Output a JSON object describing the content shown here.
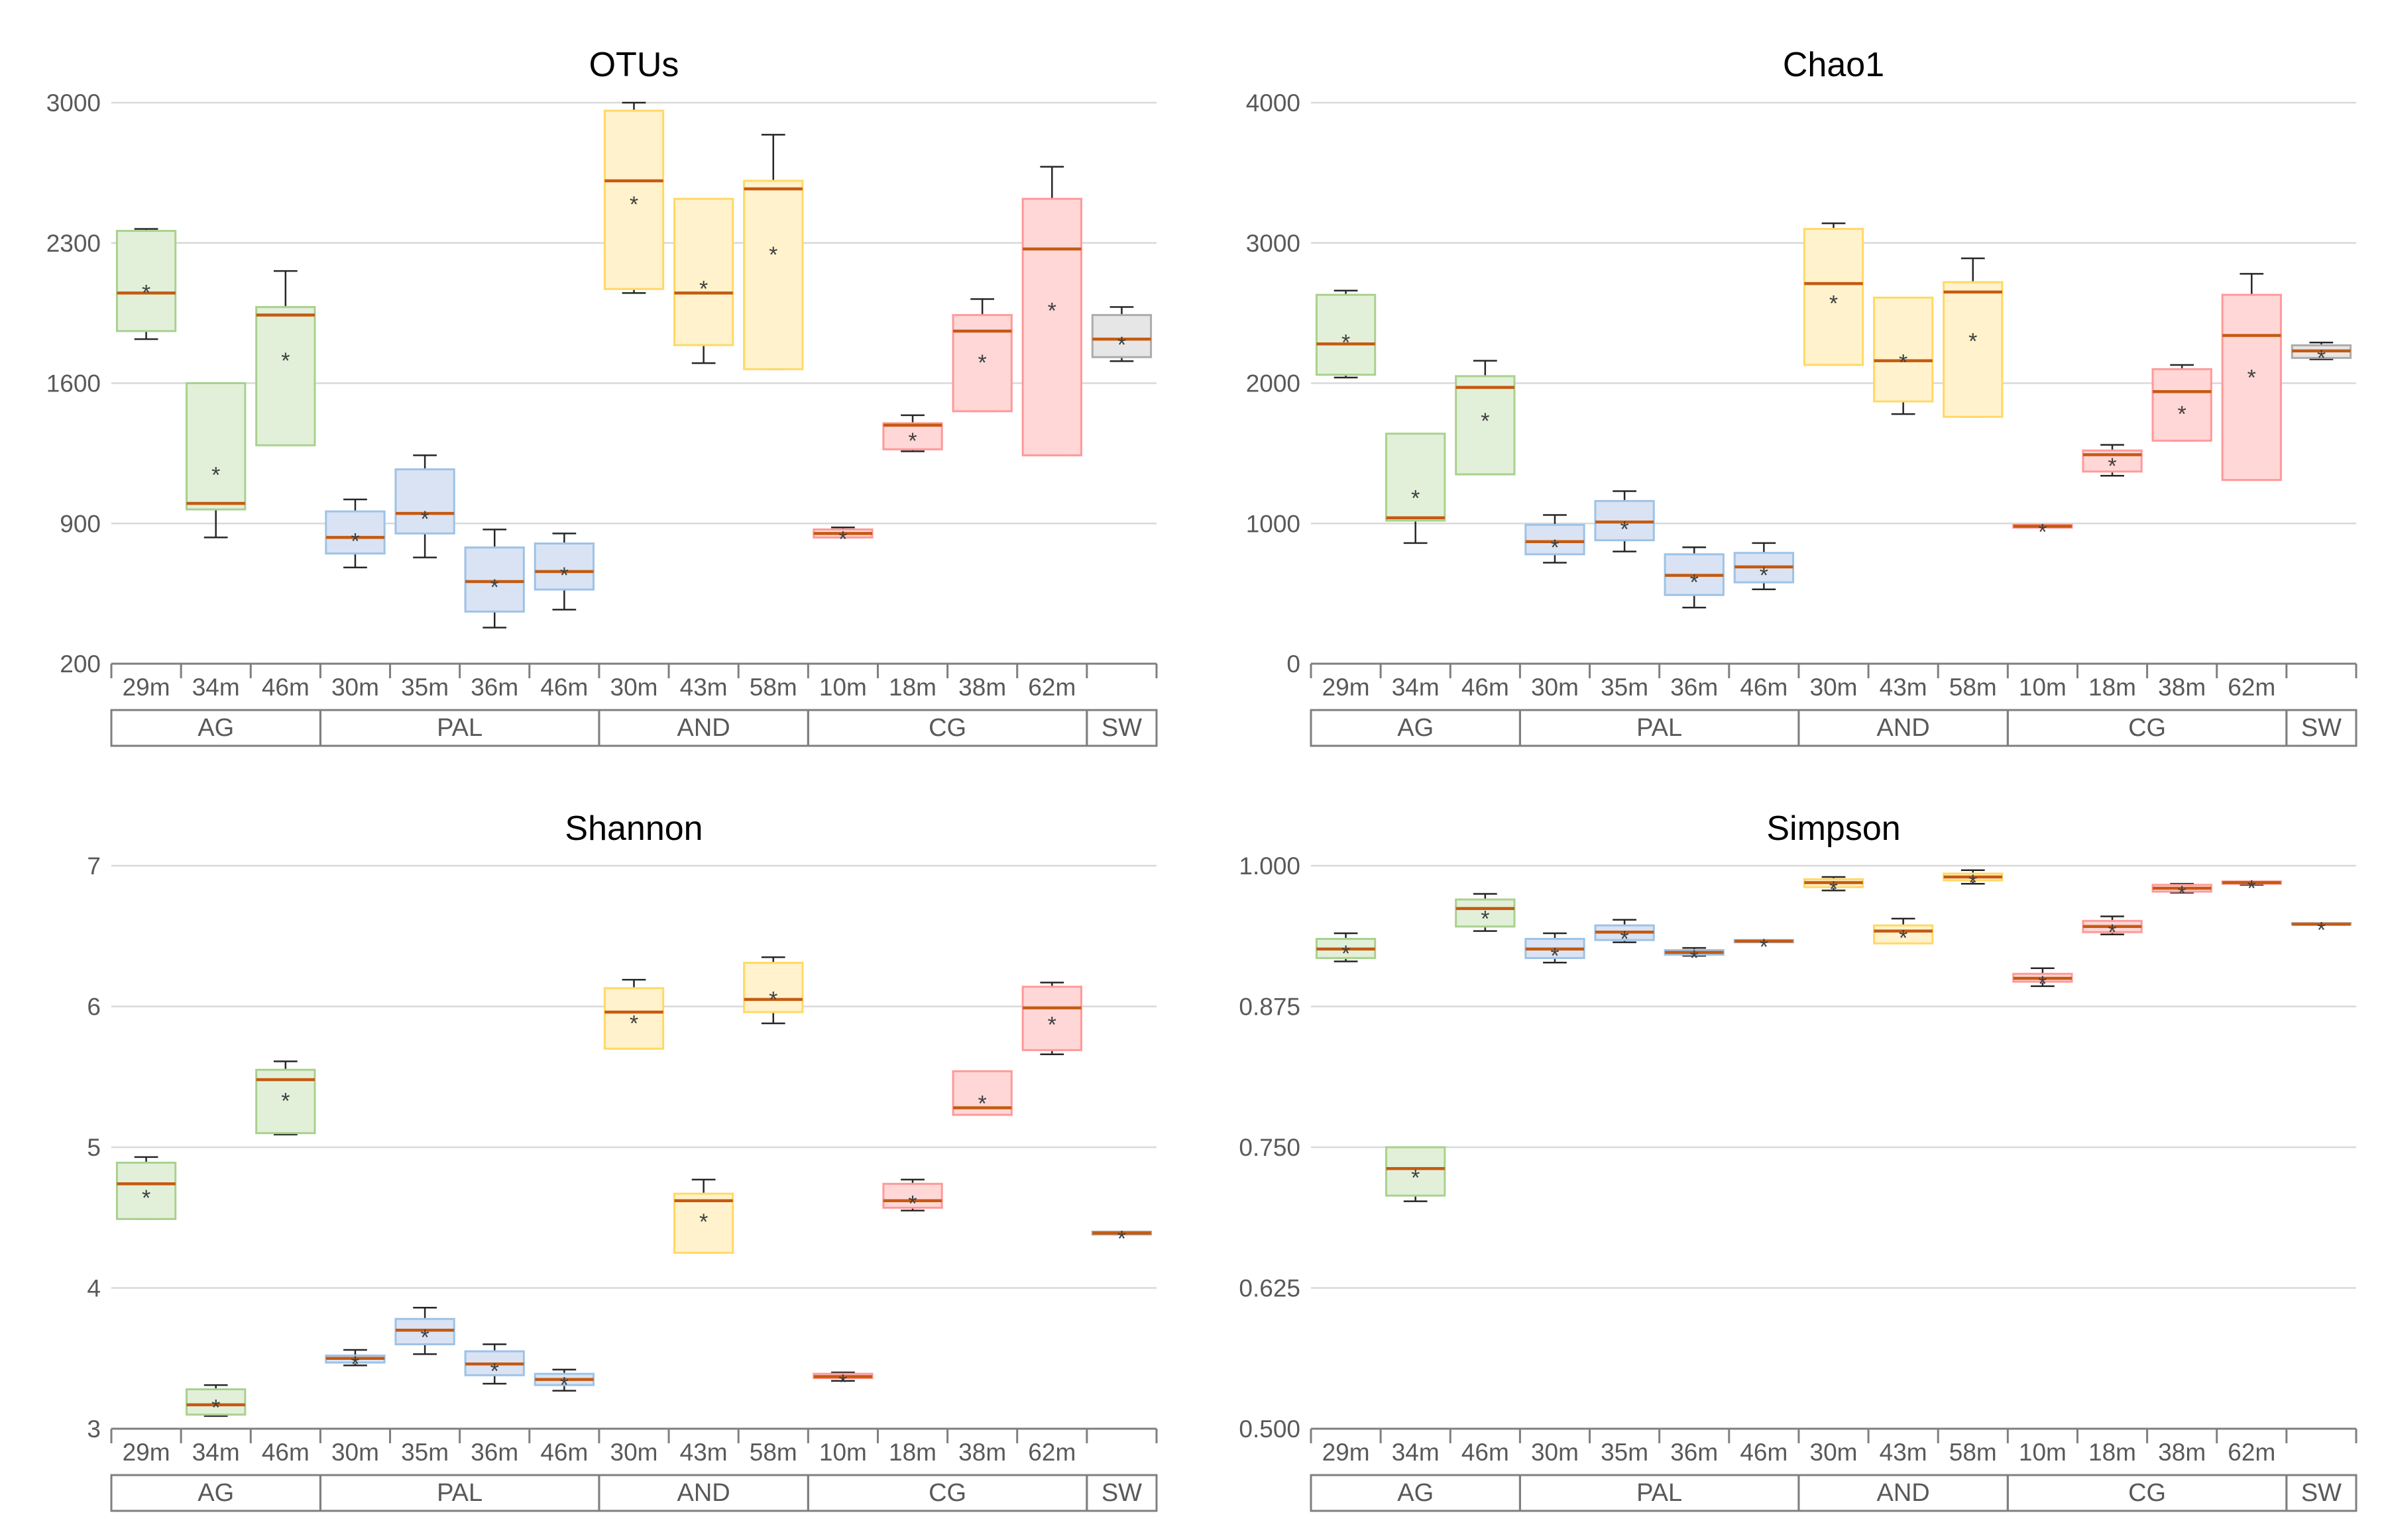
{
  "styles": {
    "grid_color": "#d9d9d9",
    "axis_color": "#7f7f7f",
    "text_color": "#595959",
    "title_color": "#000000",
    "median_color": "#c55a11",
    "whisker_color": "#262626",
    "mean_marker": "*",
    "group_colors": {
      "AG": {
        "fill": "#e2f0d9",
        "stroke": "#a9d18e"
      },
      "PAL": {
        "fill": "#dae3f3",
        "stroke": "#9dc3e6"
      },
      "AND": {
        "fill": "#fff2cc",
        "stroke": "#ffd966"
      },
      "CG": {
        "fill": "#ffd7d7",
        "stroke": "#ff9999"
      },
      "SW": {
        "fill": "#e7e6e6",
        "stroke": "#aeaaaa"
      }
    }
  },
  "categories": [
    "29m",
    "34m",
    "46m",
    "30m",
    "35m",
    "36m",
    "46m",
    "30m",
    "43m",
    "58m",
    "10m",
    "18m",
    "38m",
    "62m",
    ""
  ],
  "groups": [
    {
      "label": "AG",
      "start": 0,
      "end": 2
    },
    {
      "label": "PAL",
      "start": 3,
      "end": 6
    },
    {
      "label": "AND",
      "start": 7,
      "end": 9
    },
    {
      "label": "CG",
      "start": 10,
      "end": 13
    },
    {
      "label": "SW",
      "start": 14,
      "end": 14
    }
  ],
  "chart_data": [
    {
      "type": "boxplot",
      "title": "OTUs",
      "ylim": [
        200,
        3000
      ],
      "yticks": [
        "3000",
        "2300",
        "1600",
        "900",
        "200"
      ],
      "ytick_values": [
        3000,
        2300,
        1600,
        900,
        200
      ],
      "boxes": [
        {
          "g": "AG",
          "min": 1820,
          "q1": 1860,
          "median": 2050,
          "q3": 2360,
          "max": 2370,
          "mean": 2080
        },
        {
          "g": "AG",
          "min": 830,
          "q1": 970,
          "median": 1000,
          "q3": 1600,
          "max": 1600,
          "mean": 1170
        },
        {
          "g": "AG",
          "min": 1290,
          "q1": 1290,
          "median": 1940,
          "q3": 1980,
          "max": 2160,
          "mean": 1740
        },
        {
          "g": "PAL",
          "min": 680,
          "q1": 750,
          "median": 830,
          "q3": 960,
          "max": 1020,
          "mean": 840
        },
        {
          "g": "PAL",
          "min": 730,
          "q1": 850,
          "median": 950,
          "q3": 1170,
          "max": 1240,
          "mean": 950
        },
        {
          "g": "PAL",
          "min": 380,
          "q1": 460,
          "median": 610,
          "q3": 780,
          "max": 870,
          "mean": 610
        },
        {
          "g": "PAL",
          "min": 470,
          "q1": 570,
          "median": 660,
          "q3": 800,
          "max": 850,
          "mean": 670
        },
        {
          "g": "AND",
          "min": 2050,
          "q1": 2070,
          "median": 2610,
          "q3": 2960,
          "max": 3000,
          "mean": 2520
        },
        {
          "g": "AND",
          "min": 1700,
          "q1": 1790,
          "median": 2050,
          "q3": 2520,
          "max": 2520,
          "mean": 2100
        },
        {
          "g": "AND",
          "min": 1670,
          "q1": 1670,
          "median": 2570,
          "q3": 2610,
          "max": 2840,
          "mean": 2270
        },
        {
          "g": "CG",
          "min": 830,
          "q1": 830,
          "median": 850,
          "q3": 870,
          "max": 880,
          "mean": 850
        },
        {
          "g": "CG",
          "min": 1260,
          "q1": 1270,
          "median": 1390,
          "q3": 1400,
          "max": 1440,
          "mean": 1340
        },
        {
          "g": "CG",
          "min": 1460,
          "q1": 1460,
          "median": 1860,
          "q3": 1940,
          "max": 2020,
          "mean": 1730
        },
        {
          "g": "CG",
          "min": 1240,
          "q1": 1240,
          "median": 2270,
          "q3": 2520,
          "max": 2680,
          "mean": 1990
        },
        {
          "g": "SW",
          "min": 1710,
          "q1": 1730,
          "median": 1820,
          "q3": 1940,
          "max": 1980,
          "mean": 1820
        }
      ]
    },
    {
      "type": "boxplot",
      "title": "Chao1",
      "ylim": [
        0,
        4000
      ],
      "yticks": [
        "4000",
        "3000",
        "2000",
        "1000",
        "0"
      ],
      "ytick_values": [
        4000,
        3000,
        2000,
        1000,
        0
      ],
      "boxes": [
        {
          "g": "AG",
          "min": 2040,
          "q1": 2060,
          "median": 2280,
          "q3": 2630,
          "max": 2660,
          "mean": 2330
        },
        {
          "g": "AG",
          "min": 860,
          "q1": 1020,
          "median": 1040,
          "q3": 1640,
          "max": 1640,
          "mean": 1220
        },
        {
          "g": "AG",
          "min": 1350,
          "q1": 1350,
          "median": 1970,
          "q3": 2050,
          "max": 2160,
          "mean": 1770
        },
        {
          "g": "PAL",
          "min": 720,
          "q1": 780,
          "median": 870,
          "q3": 990,
          "max": 1060,
          "mean": 870
        },
        {
          "g": "PAL",
          "min": 800,
          "q1": 880,
          "median": 1010,
          "q3": 1160,
          "max": 1230,
          "mean": 1000
        },
        {
          "g": "PAL",
          "min": 400,
          "q1": 490,
          "median": 630,
          "q3": 780,
          "max": 830,
          "mean": 620
        },
        {
          "g": "PAL",
          "min": 530,
          "q1": 580,
          "median": 690,
          "q3": 790,
          "max": 860,
          "mean": 670
        },
        {
          "g": "AND",
          "min": 2130,
          "q1": 2130,
          "median": 2710,
          "q3": 3100,
          "max": 3140,
          "mean": 2610
        },
        {
          "g": "AND",
          "min": 1780,
          "q1": 1870,
          "median": 2160,
          "q3": 2610,
          "max": 2610,
          "mean": 2190
        },
        {
          "g": "AND",
          "min": 1760,
          "q1": 1760,
          "median": 2650,
          "q3": 2720,
          "max": 2890,
          "mean": 2340
        },
        {
          "g": "CG",
          "min": 970,
          "q1": 970,
          "median": 980,
          "q3": 990,
          "max": 990,
          "mean": 980
        },
        {
          "g": "CG",
          "min": 1340,
          "q1": 1370,
          "median": 1490,
          "q3": 1520,
          "max": 1560,
          "mean": 1450
        },
        {
          "g": "CG",
          "min": 1590,
          "q1": 1590,
          "median": 1940,
          "q3": 2100,
          "max": 2130,
          "mean": 1820
        },
        {
          "g": "CG",
          "min": 1310,
          "q1": 1310,
          "median": 2340,
          "q3": 2630,
          "max": 2780,
          "mean": 2080
        },
        {
          "g": "SW",
          "min": 2170,
          "q1": 2180,
          "median": 2230,
          "q3": 2270,
          "max": 2290,
          "mean": 2220
        }
      ]
    },
    {
      "type": "boxplot",
      "title": "Shannon",
      "ylim": [
        3,
        7
      ],
      "yticks": [
        "7",
        "6",
        "5",
        "4",
        "3"
      ],
      "ytick_values": [
        7,
        6,
        5,
        4,
        3
      ],
      "boxes": [
        {
          "g": "AG",
          "min": 4.49,
          "q1": 4.49,
          "median": 4.74,
          "q3": 4.89,
          "max": 4.93,
          "mean": 4.68
        },
        {
          "g": "AG",
          "min": 3.09,
          "q1": 3.1,
          "median": 3.17,
          "q3": 3.28,
          "max": 3.31,
          "mean": 3.19
        },
        {
          "g": "AG",
          "min": 5.09,
          "q1": 5.1,
          "median": 5.48,
          "q3": 5.55,
          "max": 5.61,
          "mean": 5.37
        },
        {
          "g": "PAL",
          "min": 3.45,
          "q1": 3.47,
          "median": 3.5,
          "q3": 3.52,
          "max": 3.56,
          "mean": 3.5
        },
        {
          "g": "PAL",
          "min": 3.53,
          "q1": 3.6,
          "median": 3.7,
          "q3": 3.78,
          "max": 3.86,
          "mean": 3.69
        },
        {
          "g": "PAL",
          "min": 3.32,
          "q1": 3.38,
          "median": 3.46,
          "q3": 3.55,
          "max": 3.6,
          "mean": 3.45
        },
        {
          "g": "PAL",
          "min": 3.27,
          "q1": 3.31,
          "median": 3.35,
          "q3": 3.39,
          "max": 3.42,
          "mean": 3.35
        },
        {
          "g": "AND",
          "min": 5.7,
          "q1": 5.7,
          "median": 5.96,
          "q3": 6.13,
          "max": 6.19,
          "mean": 5.92
        },
        {
          "g": "AND",
          "min": 4.25,
          "q1": 4.25,
          "median": 4.62,
          "q3": 4.67,
          "max": 4.77,
          "mean": 4.51
        },
        {
          "g": "AND",
          "min": 5.88,
          "q1": 5.96,
          "median": 6.05,
          "q3": 6.31,
          "max": 6.35,
          "mean": 6.09
        },
        {
          "g": "CG",
          "min": 3.34,
          "q1": 3.36,
          "median": 3.37,
          "q3": 3.39,
          "max": 3.4,
          "mean": 3.37
        },
        {
          "g": "CG",
          "min": 4.55,
          "q1": 4.57,
          "median": 4.62,
          "q3": 4.74,
          "max": 4.77,
          "mean": 4.64
        },
        {
          "g": "CG",
          "min": 5.23,
          "q1": 5.23,
          "median": 5.28,
          "q3": 5.54,
          "max": 5.54,
          "mean": 5.35
        },
        {
          "g": "CG",
          "min": 5.66,
          "q1": 5.69,
          "median": 5.99,
          "q3": 6.14,
          "max": 6.17,
          "mean": 5.91
        },
        {
          "g": "SW",
          "min": 4.38,
          "q1": 4.38,
          "median": 4.39,
          "q3": 4.4,
          "max": 4.4,
          "mean": 4.39
        }
      ]
    },
    {
      "type": "boxplot",
      "title": "Simpson",
      "ylim": [
        0.5,
        1.0
      ],
      "yticks": [
        "1.000",
        "0.875",
        "0.750",
        "0.625",
        "0.500"
      ],
      "ytick_values": [
        1.0,
        0.875,
        0.75,
        0.625,
        0.5
      ],
      "boxes": [
        {
          "g": "AG",
          "min": 0.915,
          "q1": 0.918,
          "median": 0.926,
          "q3": 0.935,
          "max": 0.94,
          "mean": 0.927
        },
        {
          "g": "AG",
          "min": 0.702,
          "q1": 0.707,
          "median": 0.731,
          "q3": 0.75,
          "max": 0.75,
          "mean": 0.728
        },
        {
          "g": "AG",
          "min": 0.942,
          "q1": 0.946,
          "median": 0.962,
          "q3": 0.97,
          "max": 0.975,
          "mean": 0.958
        },
        {
          "g": "PAL",
          "min": 0.914,
          "q1": 0.918,
          "median": 0.926,
          "q3": 0.935,
          "max": 0.94,
          "mean": 0.925
        },
        {
          "g": "PAL",
          "min": 0.932,
          "q1": 0.934,
          "median": 0.941,
          "q3": 0.947,
          "max": 0.952,
          "mean": 0.94
        },
        {
          "g": "PAL",
          "min": 0.92,
          "q1": 0.921,
          "median": 0.923,
          "q3": 0.925,
          "max": 0.927,
          "mean": 0.923
        },
        {
          "g": "PAL",
          "min": 0.932,
          "q1": 0.932,
          "median": 0.933,
          "q3": 0.934,
          "max": 0.934,
          "mean": 0.933
        },
        {
          "g": "AND",
          "min": 0.978,
          "q1": 0.981,
          "median": 0.985,
          "q3": 0.988,
          "max": 0.99,
          "mean": 0.984
        },
        {
          "g": "AND",
          "min": 0.931,
          "q1": 0.931,
          "median": 0.942,
          "q3": 0.947,
          "max": 0.953,
          "mean": 0.941
        },
        {
          "g": "AND",
          "min": 0.984,
          "q1": 0.987,
          "median": 0.99,
          "q3": 0.993,
          "max": 0.996,
          "mean": 0.99
        },
        {
          "g": "CG",
          "min": 0.893,
          "q1": 0.897,
          "median": 0.9,
          "q3": 0.904,
          "max": 0.909,
          "mean": 0.9
        },
        {
          "g": "CG",
          "min": 0.939,
          "q1": 0.941,
          "median": 0.946,
          "q3": 0.951,
          "max": 0.955,
          "mean": 0.946
        },
        {
          "g": "CG",
          "min": 0.976,
          "q1": 0.977,
          "median": 0.98,
          "q3": 0.983,
          "max": 0.984,
          "mean": 0.98
        },
        {
          "g": "CG",
          "min": 0.983,
          "q1": 0.984,
          "median": 0.985,
          "q3": 0.986,
          "max": 0.986,
          "mean": 0.985
        },
        {
          "g": "SW",
          "min": 0.948,
          "q1": 0.948,
          "median": 0.948,
          "q3": 0.949,
          "max": 0.949,
          "mean": 0.948
        }
      ]
    }
  ]
}
